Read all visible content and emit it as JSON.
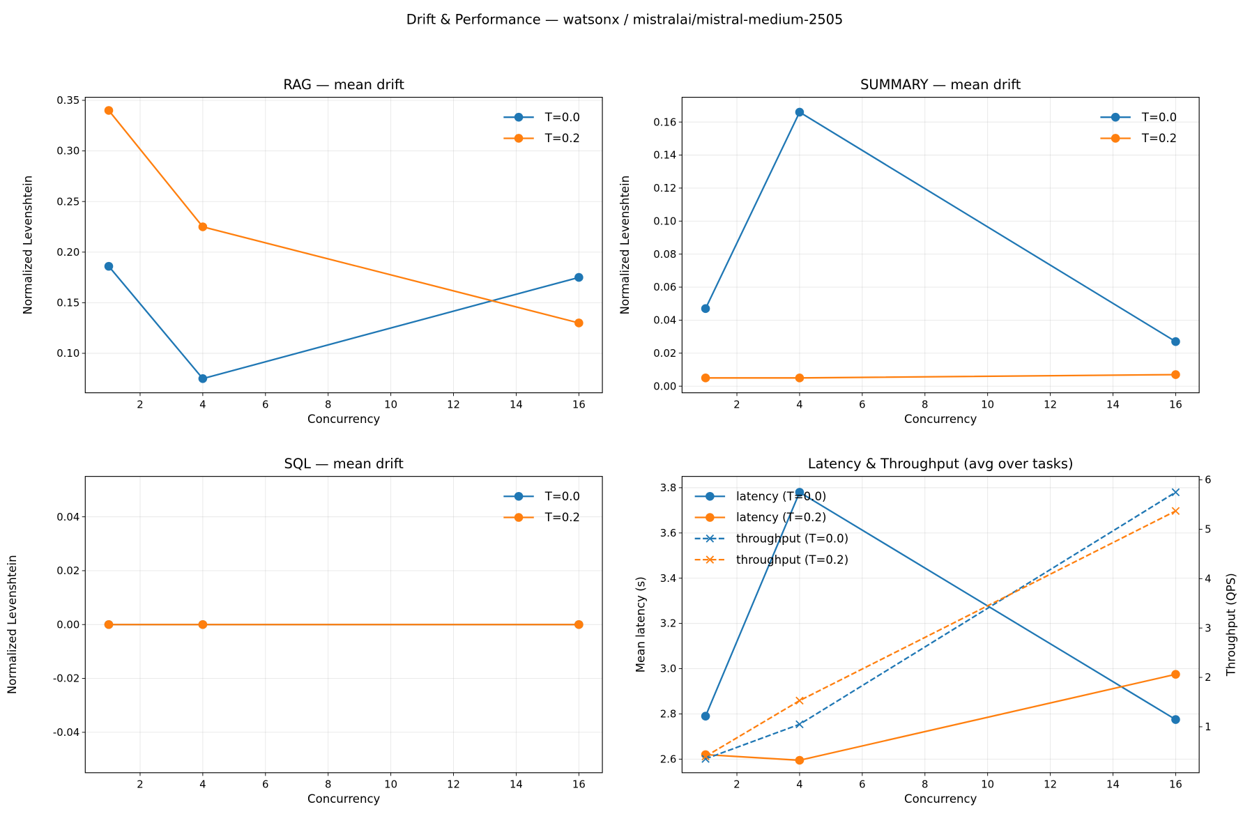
{
  "title": "Drift & Performance — watsonx / mistralai/mistral-medium-2505",
  "colors": {
    "T=0.0": "#1f77b4",
    "T=0.2": "#ff7f0e"
  },
  "chart_data": [
    {
      "type": "line",
      "title": "RAG — mean drift",
      "xlabel": "Concurrency",
      "ylabel": "Normalized Levenshtein",
      "x": [
        1,
        4,
        16
      ],
      "xlim": [
        0.25,
        16.75
      ],
      "xticks": [
        2,
        4,
        6,
        8,
        10,
        12,
        14,
        16
      ],
      "ylim": [
        0.061,
        0.353
      ],
      "yticks": [
        0.1,
        0.15,
        0.2,
        0.25,
        0.3,
        0.35
      ],
      "ytick_decimals": 2,
      "grid": true,
      "legend": "top-right",
      "series": [
        {
          "name": "T=0.0",
          "color": "#1f77b4",
          "marker": "o",
          "dash": false,
          "values": [
            0.186,
            0.075,
            0.175
          ]
        },
        {
          "name": "T=0.2",
          "color": "#ff7f0e",
          "marker": "o",
          "dash": false,
          "values": [
            0.34,
            0.225,
            0.13
          ]
        }
      ]
    },
    {
      "type": "line",
      "title": "SUMMARY — mean drift",
      "xlabel": "Concurrency",
      "ylabel": "Normalized Levenshtein",
      "x": [
        1,
        4,
        16
      ],
      "xlim": [
        0.25,
        16.75
      ],
      "xticks": [
        2,
        4,
        6,
        8,
        10,
        12,
        14,
        16
      ],
      "ylim": [
        -0.004,
        0.175
      ],
      "yticks": [
        0.0,
        0.02,
        0.04,
        0.06,
        0.08,
        0.1,
        0.12,
        0.14,
        0.16
      ],
      "ytick_decimals": 2,
      "grid": true,
      "legend": "top-right",
      "series": [
        {
          "name": "T=0.0",
          "color": "#1f77b4",
          "marker": "o",
          "dash": false,
          "values": [
            0.047,
            0.166,
            0.027
          ]
        },
        {
          "name": "T=0.2",
          "color": "#ff7f0e",
          "marker": "o",
          "dash": false,
          "values": [
            0.005,
            0.005,
            0.007
          ]
        }
      ]
    },
    {
      "type": "line",
      "title": "SQL — mean drift",
      "xlabel": "Concurrency",
      "ylabel": "Normalized Levenshtein",
      "x": [
        1,
        4,
        16
      ],
      "xlim": [
        0.25,
        16.75
      ],
      "xticks": [
        2,
        4,
        6,
        8,
        10,
        12,
        14,
        16
      ],
      "ylim": [
        -0.055,
        0.055
      ],
      "yticks": [
        -0.04,
        -0.02,
        0.0,
        0.02,
        0.04
      ],
      "ytick_decimals": 2,
      "grid": true,
      "legend": "top-right",
      "series": [
        {
          "name": "T=0.0",
          "color": "#1f77b4",
          "marker": "o",
          "dash": false,
          "values": [
            0.0,
            0.0,
            0.0
          ]
        },
        {
          "name": "T=0.2",
          "color": "#ff7f0e",
          "marker": "o",
          "dash": false,
          "values": [
            0.0,
            0.0,
            0.0
          ]
        }
      ]
    },
    {
      "type": "line",
      "title": "Latency & Throughput (avg over tasks)",
      "xlabel": "Concurrency",
      "ylabel": "Mean latency (s)",
      "y2label": "Throughput (QPS)",
      "x": [
        1,
        4,
        16
      ],
      "xlim": [
        0.25,
        16.75
      ],
      "xticks": [
        2,
        4,
        6,
        8,
        10,
        12,
        14,
        16
      ],
      "ylim": [
        2.54,
        3.85
      ],
      "yticks": [
        2.6,
        2.8,
        3.0,
        3.2,
        3.4,
        3.6,
        3.8
      ],
      "ytick_decimals": 1,
      "y2lim": [
        0.07,
        6.07
      ],
      "y2ticks": [
        1,
        2,
        3,
        4,
        5,
        6
      ],
      "grid": true,
      "legend": "top-left",
      "series": [
        {
          "name": "latency (T=0.0)",
          "color": "#1f77b4",
          "marker": "o",
          "dash": false,
          "axis": "left",
          "values": [
            2.79,
            3.78,
            2.775
          ]
        },
        {
          "name": "latency (T=0.2)",
          "color": "#ff7f0e",
          "marker": "o",
          "dash": false,
          "axis": "left",
          "values": [
            2.62,
            2.595,
            2.975
          ]
        },
        {
          "name": "throughput (T=0.0)",
          "color": "#1f77b4",
          "marker": "x",
          "dash": true,
          "axis": "right",
          "values": [
            0.35,
            1.05,
            5.75
          ]
        },
        {
          "name": "throughput (T=0.2)",
          "color": "#ff7f0e",
          "marker": "x",
          "dash": true,
          "axis": "right",
          "values": [
            0.4,
            1.53,
            5.37
          ]
        }
      ]
    }
  ]
}
